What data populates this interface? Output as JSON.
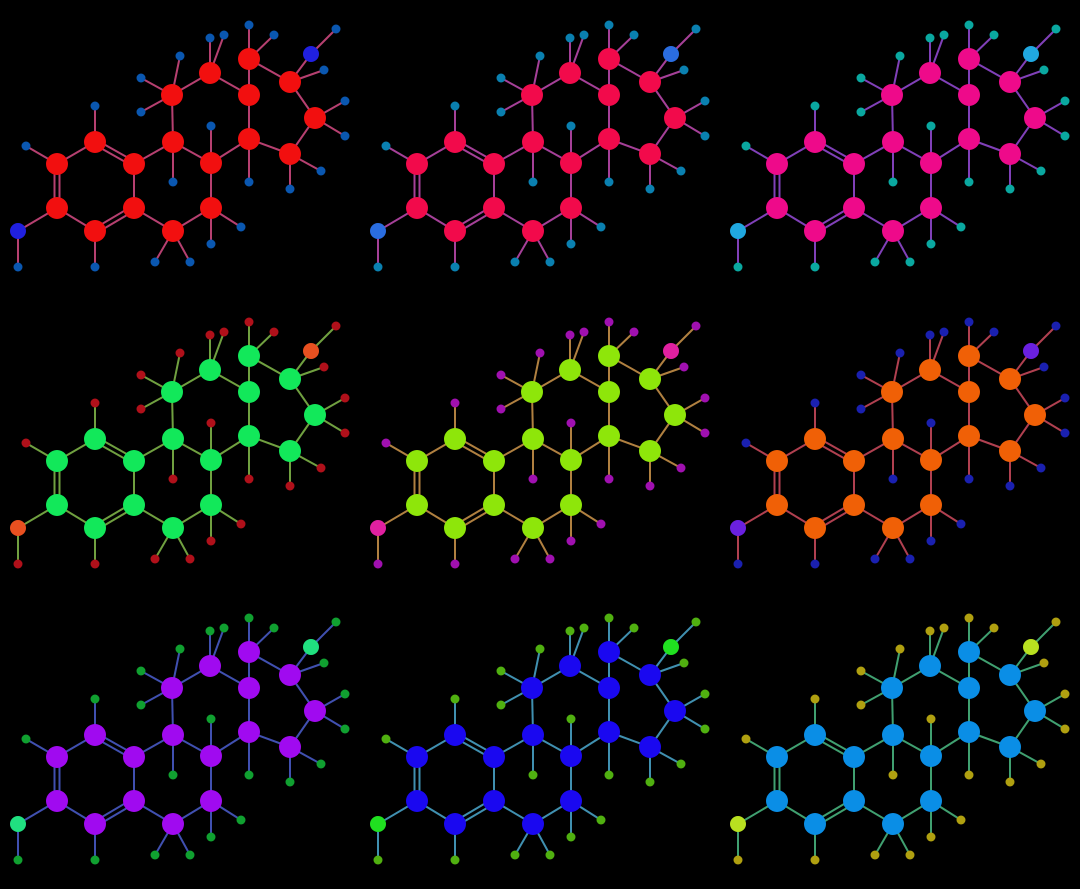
{
  "background": "#000000",
  "panels": [
    {
      "atom_color": "#f20f0f",
      "bond_color": "#b64070",
      "h_color": "#0a57b0",
      "x_color": "#2020e0",
      "dot_color": "#0a57b0"
    },
    {
      "atom_color": "#f20a4b",
      "bond_color": "#a54098",
      "h_color": "#0a80b0",
      "x_color": "#2a6de0",
      "dot_color": "#0a80b0"
    },
    {
      "atom_color": "#ee0a8a",
      "bond_color": "#8040b8",
      "h_color": "#0aa8a0",
      "x_color": "#20a8e0",
      "dot_color": "#0aa8a0"
    },
    {
      "atom_color": "#12e85a",
      "bond_color": "#70a040",
      "h_color": "#b0101a",
      "x_color": "#e85020",
      "dot_color": "#b0101a"
    },
    {
      "atom_color": "#8ee60a",
      "bond_color": "#b08040",
      "h_color": "#a010b0",
      "x_color": "#e020a0",
      "dot_color": "#a010b0"
    },
    {
      "atom_color": "#f06006",
      "bond_color": "#b04050",
      "h_color": "#1a20b0",
      "x_color": "#6a20e0",
      "dot_color": "#1a20b0"
    },
    {
      "atom_color": "#a00af0",
      "bond_color": "#4050b0",
      "h_color": "#10a030",
      "x_color": "#20e080",
      "dot_color": "#10a030"
    },
    {
      "atom_color": "#1a08f0",
      "bond_color": "#4090b0",
      "h_color": "#50b010",
      "x_color": "#20e020",
      "dot_color": "#50b010"
    },
    {
      "atom_color": "#0a8ee6",
      "bond_color": "#40a070",
      "h_color": "#b0a010",
      "x_color": "#b8e020",
      "dot_color": "#b0a010"
    }
  ]
}
